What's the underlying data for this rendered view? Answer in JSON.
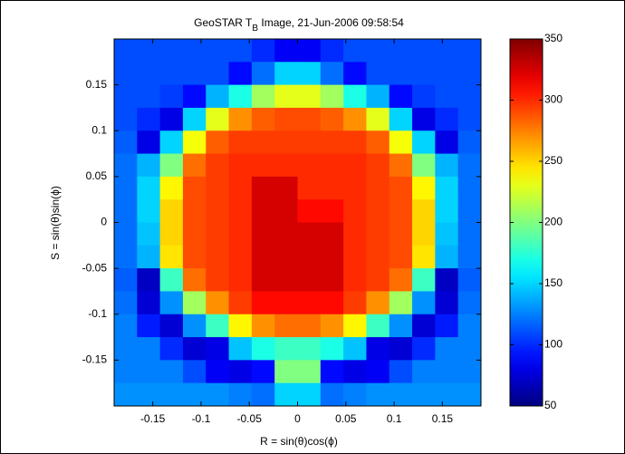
{
  "chart_data": {
    "type": "heatmap",
    "title": {
      "main": "GeoSTAR T",
      "subscript": "B",
      "rest": " Image, 21-Jun-2006 09:58:54"
    },
    "x_label": "R = sin(θ)cos(ϕ)",
    "y_label": "S = sin(θ)sin(ϕ)",
    "colormap": "jet",
    "xlim": [
      -0.19,
      0.19
    ],
    "ylim": [
      -0.2,
      0.2
    ],
    "xticks": [
      -0.15,
      -0.1,
      -0.05,
      0,
      0.05,
      0.1,
      0.15
    ],
    "yticks": [
      -0.15,
      -0.1,
      -0.05,
      0,
      0.05,
      0.1,
      0.15
    ],
    "zlim": [
      50,
      350
    ],
    "colorbar_ticks": [
      50,
      100,
      150,
      200,
      250,
      300,
      350
    ],
    "z": [
      [
        110,
        110,
        110,
        110,
        110,
        110,
        100,
        85,
        85,
        100,
        110,
        110,
        110,
        110,
        110,
        110
      ],
      [
        110,
        110,
        110,
        110,
        110,
        90,
        120,
        150,
        150,
        120,
        90,
        110,
        110,
        110,
        110,
        110
      ],
      [
        110,
        110,
        105,
        90,
        140,
        170,
        210,
        230,
        230,
        210,
        170,
        140,
        90,
        105,
        110,
        110
      ],
      [
        110,
        100,
        80,
        150,
        230,
        270,
        285,
        290,
        290,
        285,
        270,
        230,
        150,
        80,
        100,
        110
      ],
      [
        115,
        80,
        150,
        235,
        285,
        295,
        295,
        295,
        295,
        295,
        295,
        285,
        235,
        150,
        80,
        115
      ],
      [
        120,
        140,
        200,
        280,
        295,
        300,
        300,
        300,
        300,
        300,
        300,
        295,
        280,
        200,
        140,
        120
      ],
      [
        120,
        150,
        240,
        290,
        295,
        300,
        325,
        325,
        300,
        300,
        300,
        295,
        290,
        240,
        150,
        120
      ],
      [
        120,
        150,
        250,
        290,
        295,
        300,
        325,
        325,
        310,
        310,
        300,
        295,
        290,
        250,
        150,
        120
      ],
      [
        120,
        145,
        250,
        290,
        295,
        300,
        325,
        325,
        325,
        325,
        300,
        295,
        290,
        250,
        145,
        120
      ],
      [
        120,
        140,
        245,
        290,
        295,
        300,
        325,
        325,
        325,
        325,
        300,
        295,
        290,
        245,
        140,
        120
      ],
      [
        115,
        70,
        180,
        280,
        295,
        300,
        325,
        325,
        325,
        325,
        300,
        295,
        280,
        180,
        70,
        115
      ],
      [
        120,
        75,
        130,
        210,
        270,
        295,
        310,
        310,
        310,
        310,
        295,
        270,
        210,
        130,
        75,
        120
      ],
      [
        125,
        95,
        75,
        130,
        180,
        240,
        270,
        280,
        280,
        270,
        240,
        180,
        130,
        75,
        95,
        125
      ],
      [
        125,
        125,
        100,
        75,
        80,
        145,
        170,
        180,
        180,
        170,
        145,
        80,
        75,
        100,
        125,
        125
      ],
      [
        125,
        125,
        125,
        110,
        85,
        80,
        90,
        200,
        200,
        90,
        80,
        85,
        110,
        125,
        125,
        125
      ],
      [
        130,
        130,
        130,
        130,
        130,
        125,
        120,
        150,
        150,
        120,
        125,
        130,
        130,
        130,
        130,
        130
      ]
    ]
  }
}
